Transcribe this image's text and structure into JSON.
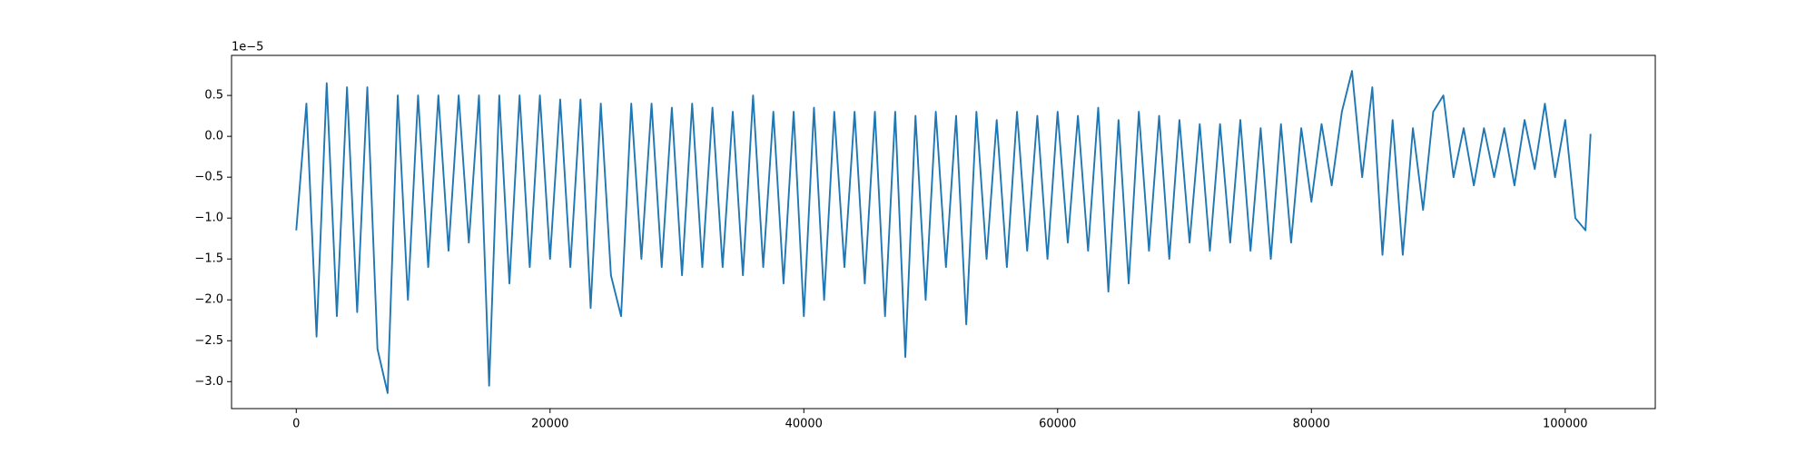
{
  "chart_data": {
    "type": "line",
    "y_offset_label": "1e−5",
    "x": [
      0,
      800,
      1600,
      2400,
      3200,
      4000,
      4800,
      5600,
      6400,
      7200,
      8000,
      8800,
      9600,
      10400,
      11200,
      12000,
      12800,
      13600,
      14400,
      15200,
      16000,
      16800,
      17600,
      18400,
      19200,
      20000,
      20800,
      21600,
      22400,
      23200,
      24000,
      24800,
      25600,
      26400,
      27200,
      28000,
      28800,
      29600,
      30400,
      31200,
      32000,
      32800,
      33600,
      34400,
      35200,
      36000,
      36800,
      37600,
      38400,
      39200,
      40000,
      40800,
      41600,
      42400,
      43200,
      44000,
      44800,
      45600,
      46400,
      47200,
      48000,
      48800,
      49600,
      50400,
      51200,
      52000,
      52800,
      53600,
      54400,
      55200,
      56000,
      56800,
      57600,
      58400,
      59200,
      60000,
      60800,
      61600,
      62400,
      63200,
      64000,
      64800,
      65600,
      66400,
      67200,
      68000,
      68800,
      69600,
      70400,
      71200,
      72000,
      72800,
      73600,
      74400,
      75200,
      76000,
      76800,
      77600,
      78400,
      79200,
      80000,
      80800,
      81600,
      82400,
      83200,
      84000,
      84800,
      85600,
      86400,
      87200,
      88000,
      88800,
      89600,
      90400,
      91200,
      92000,
      92800,
      93600,
      94400,
      95200,
      96000,
      96800,
      97600,
      98400,
      99200,
      100000,
      100800,
      101600,
      102000
    ],
    "series": [
      {
        "color": "#1f77b4",
        "values": [
          -1.15,
          0.4,
          -2.45,
          0.65,
          -2.2,
          0.6,
          -2.15,
          0.6,
          -2.6,
          -3.14,
          0.5,
          -2.0,
          0.5,
          -1.6,
          0.5,
          -1.4,
          0.5,
          -1.3,
          0.5,
          -3.05,
          0.5,
          -1.8,
          0.5,
          -1.6,
          0.5,
          -1.5,
          0.45,
          -1.6,
          0.45,
          -2.1,
          0.4,
          -1.7,
          -2.2,
          0.4,
          -1.5,
          0.4,
          -1.6,
          0.35,
          -1.7,
          0.4,
          -1.6,
          0.35,
          -1.6,
          0.3,
          -1.7,
          0.5,
          -1.6,
          0.3,
          -1.8,
          0.3,
          -2.2,
          0.35,
          -2.0,
          0.3,
          -1.6,
          0.3,
          -1.8,
          0.3,
          -2.2,
          0.3,
          -2.7,
          0.25,
          -2.0,
          0.3,
          -1.6,
          0.25,
          -2.3,
          0.3,
          -1.5,
          0.2,
          -1.6,
          0.3,
          -1.4,
          0.25,
          -1.5,
          0.3,
          -1.3,
          0.25,
          -1.4,
          0.35,
          -1.9,
          0.2,
          -1.8,
          0.3,
          -1.4,
          0.25,
          -1.5,
          0.2,
          -1.3,
          0.15,
          -1.4,
          0.15,
          -1.3,
          0.2,
          -1.4,
          0.1,
          -1.5,
          0.15,
          -1.3,
          0.1,
          -0.8,
          0.15,
          -0.6,
          0.3,
          0.8,
          -0.5,
          0.6,
          -1.45,
          0.2,
          -1.45,
          0.1,
          -0.9,
          0.3,
          0.5,
          -0.5,
          0.1,
          -0.6,
          0.1,
          -0.5,
          0.1,
          -0.6,
          0.2,
          -0.4,
          0.4,
          -0.5,
          0.2,
          -1.0,
          -1.15,
          0.03
        ]
      }
    ],
    "xlim": [
      -5100,
      107100
    ],
    "ylim": [
      -3.33,
      0.99
    ],
    "xticks": [
      0,
      20000,
      40000,
      60000,
      80000,
      100000
    ],
    "yticks": [
      0.5,
      {
        "value": 0,
        "label": "0.0"
      },
      {
        "value": -0.5,
        "label": "−0.5"
      },
      {
        "value": -1,
        "label": "−1.0"
      },
      {
        "value": -1.5,
        "label": "−1.5"
      },
      {
        "value": -2,
        "label": "−2.0"
      },
      {
        "value": -2.5,
        "label": "−2.5"
      },
      {
        "value": -3,
        "label": "−3.0"
      }
    ]
  }
}
